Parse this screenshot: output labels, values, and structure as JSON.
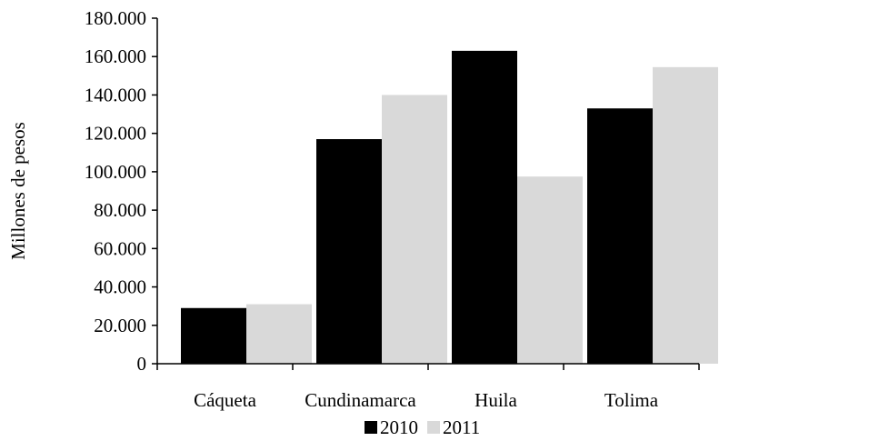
{
  "chart_data": {
    "type": "bar",
    "title": "",
    "xlabel": "",
    "ylabel": "Millones de pesos",
    "categories": [
      "Cáqueta",
      "Cundinamarca",
      "Huila",
      "Tolima"
    ],
    "series": [
      {
        "name": "2010",
        "color": "#000000",
        "values": [
          29000,
          117000,
          163000,
          133000
        ]
      },
      {
        "name": "2011",
        "color": "#d9d9d9",
        "values": [
          31000,
          140000,
          97500,
          154500
        ]
      }
    ],
    "ylim": [
      0,
      180000
    ],
    "yticks": [
      {
        "value": 0,
        "label": "0"
      },
      {
        "value": 20000,
        "label": "20.000"
      },
      {
        "value": 40000,
        "label": "40.000"
      },
      {
        "value": 60000,
        "label": "60.000"
      },
      {
        "value": 80000,
        "label": "80.000"
      },
      {
        "value": 100000,
        "label": "100.000"
      },
      {
        "value": 120000,
        "label": "120.000"
      },
      {
        "value": 140000,
        "label": "140.000"
      },
      {
        "value": 160000,
        "label": "160.000"
      },
      {
        "value": 180000,
        "label": "180.000"
      }
    ],
    "grid": false,
    "legend_position": "bottom"
  }
}
